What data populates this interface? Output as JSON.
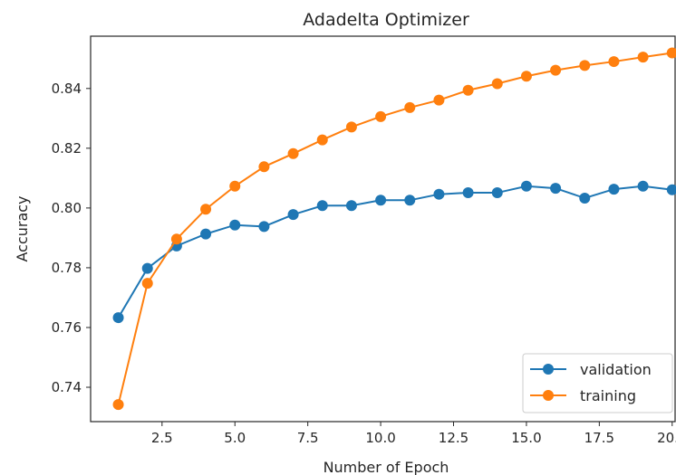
{
  "chart_data": {
    "type": "line",
    "title": "Adadelta Optimizer",
    "xlabel": "Number of Epoch",
    "ylabel": "Accuracy",
    "xlim": [
      0.05,
      20.1
    ],
    "ylim": [
      0.7285,
      0.8575
    ],
    "xticks": [
      2.5,
      5.0,
      7.5,
      10.0,
      12.5,
      15.0,
      17.5,
      20.0
    ],
    "xtick_labels": [
      "2.5",
      "5.0",
      "7.5",
      "10.0",
      "12.5",
      "15.0",
      "17.5",
      "20.0"
    ],
    "yticks": [
      0.74,
      0.76,
      0.78,
      0.8,
      0.82,
      0.84
    ],
    "ytick_labels": [
      "0.74",
      "0.76",
      "0.78",
      "0.80",
      "0.82",
      "0.84"
    ],
    "grid": false,
    "legend_position": "lower-right",
    "x": [
      1,
      2,
      3,
      4,
      5,
      6,
      7,
      8,
      9,
      10,
      11,
      12,
      13,
      14,
      15,
      16,
      17,
      18,
      19,
      20
    ],
    "series": [
      {
        "name": "validation",
        "color": "#1f77b4",
        "marker": "circle",
        "values": [
          0.7633,
          0.7798,
          0.7873,
          0.7913,
          0.7943,
          0.7938,
          0.7978,
          0.8008,
          0.8008,
          0.8026,
          0.8026,
          0.8046,
          0.8051,
          0.8051,
          0.8073,
          0.8066,
          0.8033,
          0.8063,
          0.8073,
          0.8061
        ]
      },
      {
        "name": "training",
        "color": "#ff7f0e",
        "marker": "circle",
        "values": [
          0.7342,
          0.7748,
          0.7896,
          0.7996,
          0.8073,
          0.8138,
          0.8182,
          0.8228,
          0.8271,
          0.8306,
          0.8336,
          0.8361,
          0.8394,
          0.8416,
          0.8441,
          0.8461,
          0.8477,
          0.849,
          0.8505,
          0.8519
        ]
      }
    ]
  }
}
